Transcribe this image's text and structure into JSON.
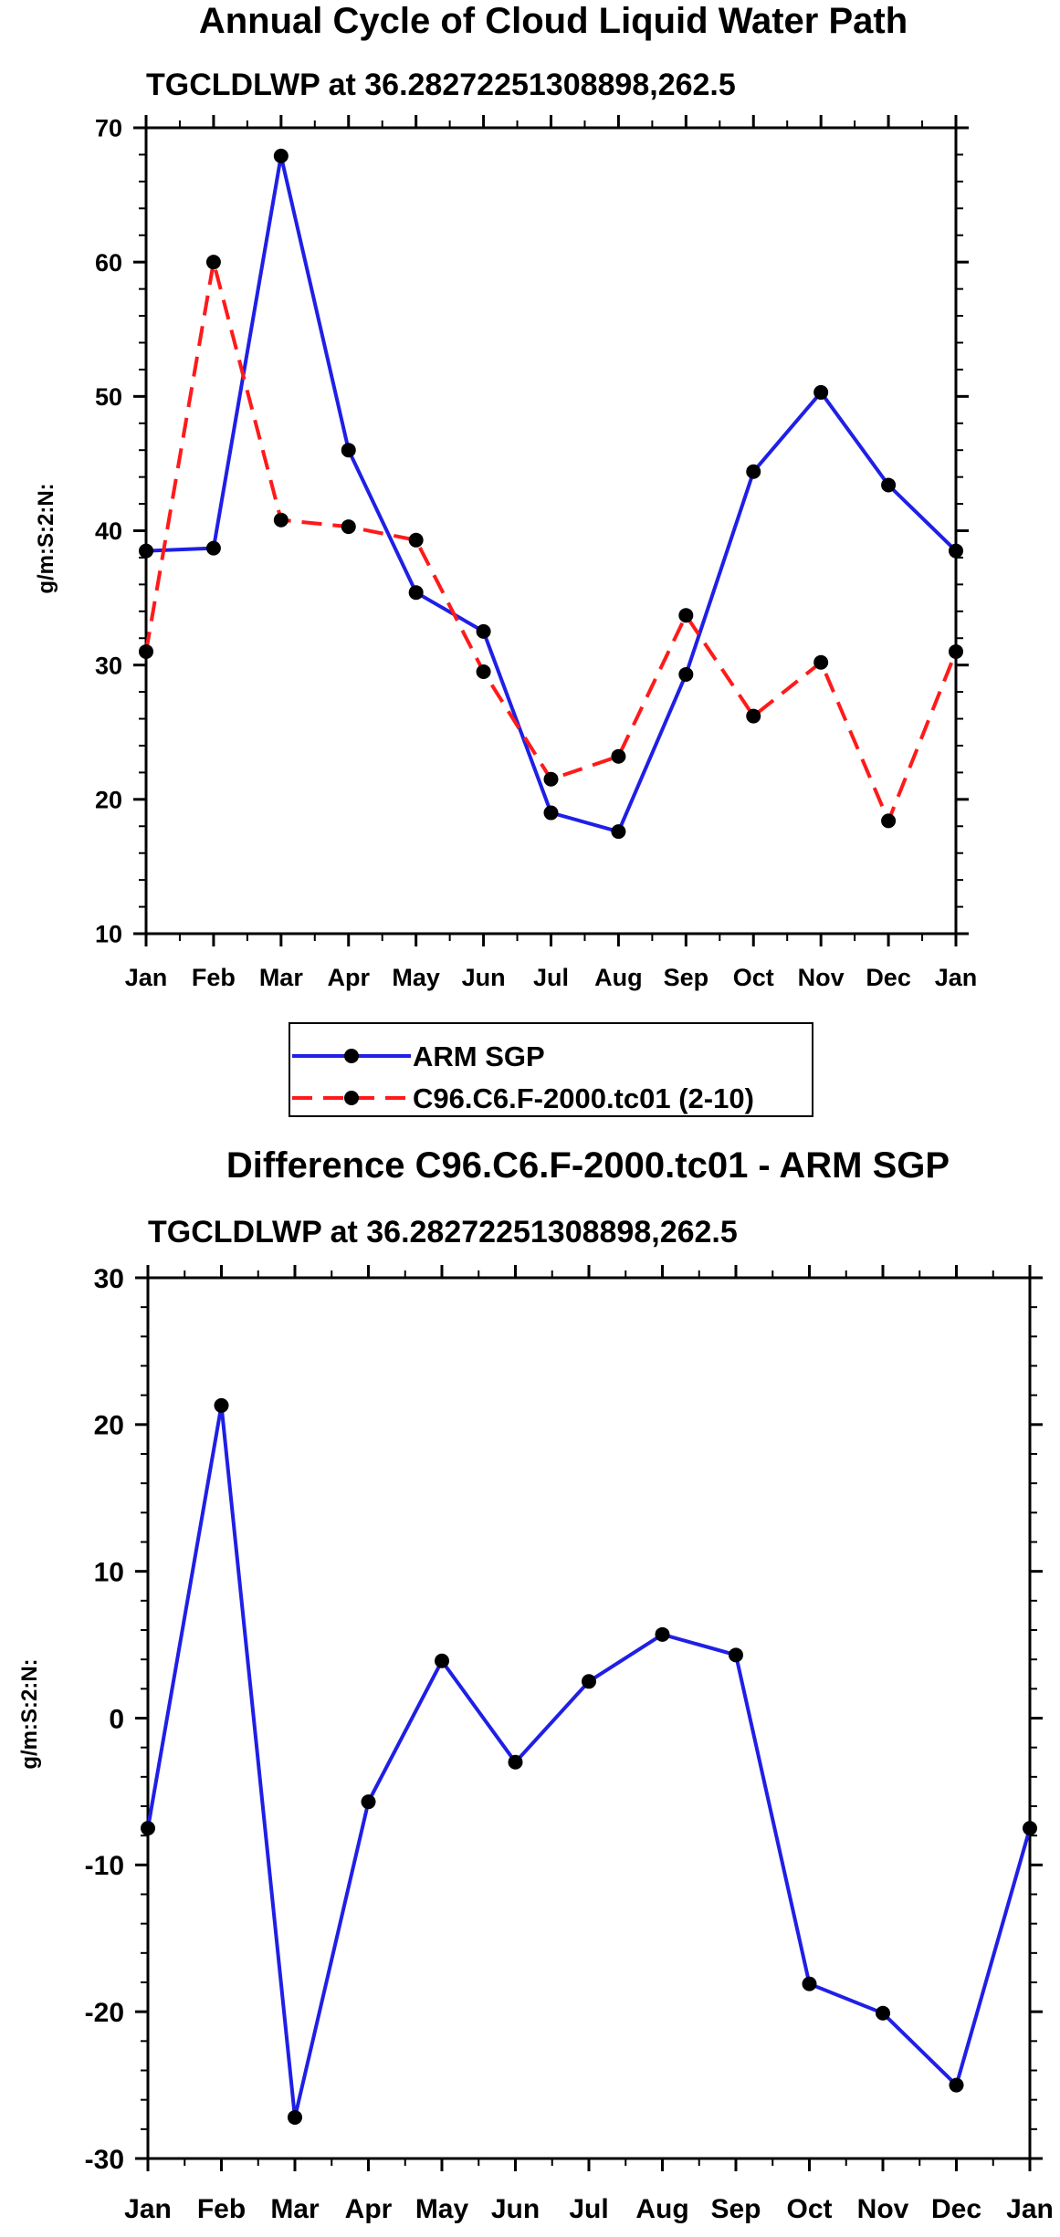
{
  "chart_data": [
    {
      "type": "line",
      "title": "Annual Cycle of Cloud Liquid Water Path",
      "subtitle": "TGCLDLWP at 36.28272251308898,262.5",
      "ylabel": "g/m:S:2:N:",
      "xlabel": "",
      "categories": [
        "Jan",
        "Feb",
        "Mar",
        "Apr",
        "May",
        "Jun",
        "Jul",
        "Aug",
        "Sep",
        "Oct",
        "Nov",
        "Dec",
        "Jan"
      ],
      "ylim": [
        10,
        70
      ],
      "yticks": [
        "10",
        "20",
        "30",
        "40",
        "50",
        "60",
        "70"
      ],
      "series": [
        {
          "name": "ARM SGP",
          "color": "#1f1fe6",
          "style": "solid",
          "values": [
            38.5,
            38.7,
            67.9,
            46.0,
            35.4,
            32.5,
            19.0,
            17.6,
            29.3,
            44.4,
            50.3,
            43.4,
            38.5
          ]
        },
        {
          "name": "C96.C6.F-2000.tc01 (2-10)",
          "color": "#ff1a1a",
          "style": "dashed",
          "values": [
            31.0,
            60.0,
            40.8,
            40.3,
            39.3,
            29.5,
            21.5,
            23.2,
            33.7,
            26.2,
            30.2,
            18.4,
            31.0
          ]
        }
      ],
      "legend": {
        "position": "bottom-center",
        "entries": [
          "ARM SGP",
          "C96.C6.F-2000.tc01 (2-10)"
        ]
      }
    },
    {
      "type": "line",
      "title": "Difference C96.C6.F-2000.tc01 - ARM SGP",
      "subtitle": "TGCLDLWP at 36.28272251308898,262.5",
      "ylabel": "g/m:S:2:N:",
      "xlabel": "",
      "categories": [
        "Jan",
        "Feb",
        "Mar",
        "Apr",
        "May",
        "Jun",
        "Jul",
        "Aug",
        "Sep",
        "Oct",
        "Nov",
        "Dec",
        "Jan"
      ],
      "ylim": [
        -30,
        30
      ],
      "yticks": [
        "-30",
        "-20",
        "-10",
        "0",
        "10",
        "20",
        "30"
      ],
      "series": [
        {
          "name": "Difference",
          "color": "#1f1fe6",
          "style": "solid",
          "values": [
            -7.5,
            21.3,
            -27.2,
            -5.7,
            3.9,
            -3.0,
            2.5,
            5.7,
            4.3,
            -18.1,
            -20.1,
            -25.0,
            -7.5
          ]
        }
      ]
    }
  ]
}
